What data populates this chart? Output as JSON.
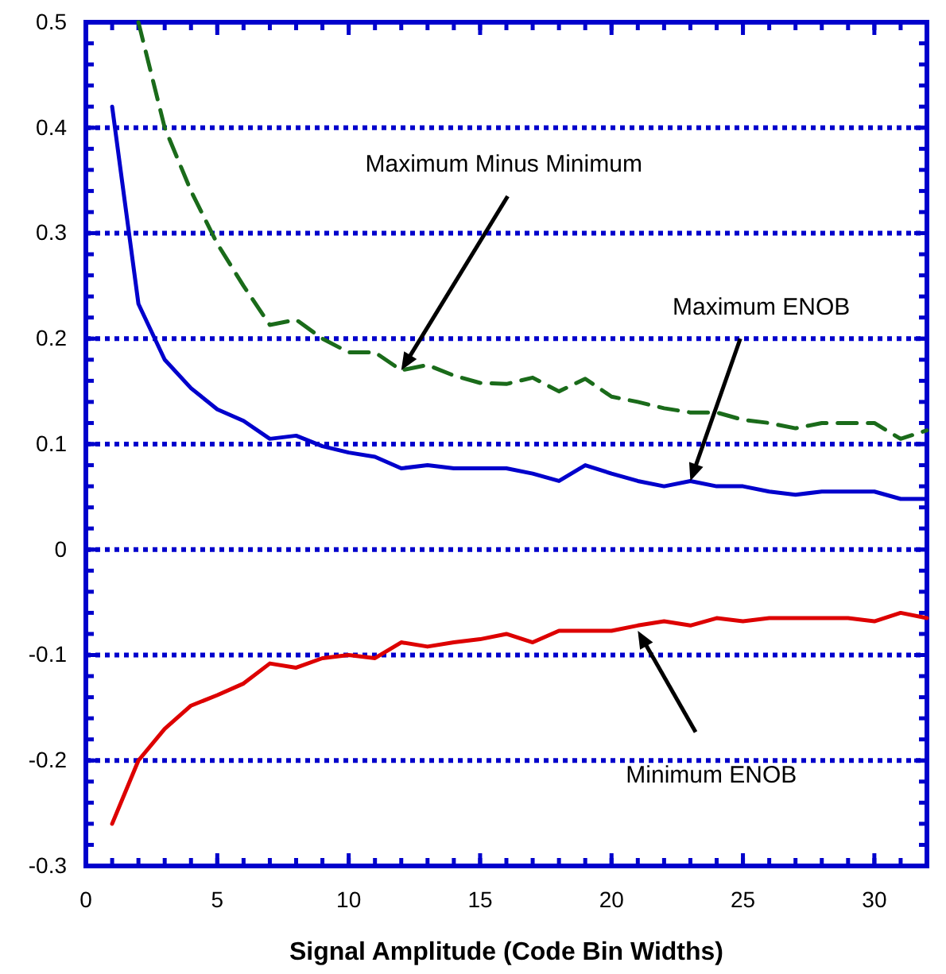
{
  "chart_data": {
    "type": "line",
    "xlabel": "Signal Amplitude (Code Bin Widths)",
    "x": [
      1,
      2,
      3,
      4,
      5,
      6,
      7,
      8,
      9,
      10,
      11,
      12,
      13,
      14,
      15,
      16,
      17,
      18,
      19,
      20,
      21,
      22,
      23,
      24,
      25,
      26,
      27,
      28,
      29,
      30,
      31,
      32
    ],
    "series": [
      {
        "color": "#0000cc",
        "line_style": "solid",
        "values": [
          0.42,
          0.233,
          0.18,
          0.153,
          0.133,
          0.122,
          0.105,
          0.108,
          0.098,
          0.092,
          0.088,
          0.077,
          0.08,
          0.077,
          0.077,
          0.077,
          0.072,
          0.065,
          0.08,
          0.072,
          0.065,
          0.06,
          0.065,
          0.06,
          0.06,
          0.055,
          0.052,
          0.055,
          0.055,
          0.055,
          0.048,
          0.048
        ]
      },
      {
        "color": "#1a6b1a",
        "line_style": "dashed",
        "values": [
          null,
          0.5,
          0.4,
          0.34,
          0.29,
          0.25,
          0.213,
          0.218,
          0.2,
          0.187,
          0.187,
          0.17,
          0.175,
          0.165,
          0.158,
          0.157,
          0.163,
          0.15,
          0.162,
          0.145,
          0.14,
          0.134,
          0.13,
          0.13,
          0.123,
          0.12,
          0.115,
          0.12,
          0.12,
          0.12,
          0.105,
          0.113
        ]
      },
      {
        "color": "#dd0000",
        "line_style": "solid",
        "values": [
          -0.26,
          -0.2,
          -0.17,
          -0.148,
          -0.138,
          -0.127,
          -0.108,
          -0.112,
          -0.103,
          -0.1,
          -0.103,
          -0.088,
          -0.092,
          -0.088,
          -0.085,
          -0.08,
          -0.088,
          -0.077,
          -0.077,
          -0.077,
          -0.072,
          -0.068,
          -0.072,
          -0.065,
          -0.068,
          -0.065,
          -0.065,
          -0.065,
          -0.065,
          -0.068,
          -0.06,
          -0.065
        ]
      }
    ],
    "annotations": [
      {
        "text": "Maximum Minus Minimum",
        "x": 12,
        "y": 0.17
      },
      {
        "text": "Maximum ENOB",
        "x": 23,
        "y": 0.065
      },
      {
        "text": "Minimum ENOB",
        "x": 21,
        "y": -0.077
      }
    ],
    "xlim": [
      0,
      32
    ],
    "xticks": [
      0,
      5,
      10,
      15,
      20,
      25,
      30
    ],
    "ylim": [
      -0.3,
      0.5
    ],
    "yticks": [
      -0.3,
      -0.2,
      -0.1,
      0,
      0.1,
      0.2,
      0.3,
      0.4,
      0.5
    ],
    "grid": "y"
  }
}
